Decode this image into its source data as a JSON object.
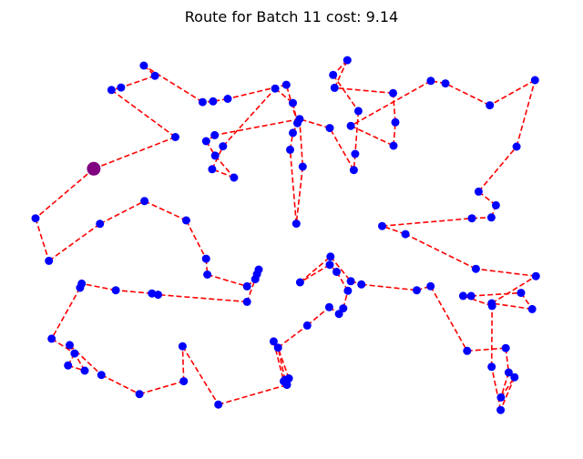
{
  "chart_data": {
    "type": "scatter",
    "title": "Route for Batch 11 cost: 9.14",
    "xlabel": "",
    "ylabel": "",
    "grid": false,
    "axes_visible": false,
    "depot_color": "#800080",
    "node_color": "#0000ff",
    "route_color": "#ff0000",
    "route_style": "dashed",
    "depot": {
      "x": 0.1149,
      "y": 0.6858
    },
    "route": [
      [
        0.1149,
        0.6858
      ],
      [
        0.0017,
        0.5566
      ],
      [
        0.0277,
        0.4456
      ],
      [
        0.1269,
        0.5421
      ],
      [
        0.2135,
        0.6015
      ],
      [
        0.2946,
        0.551
      ],
      [
        0.3331,
        0.451
      ],
      [
        0.3355,
        0.4097
      ],
      [
        0.4128,
        0.3792
      ],
      [
        0.4287,
        0.3976
      ],
      [
        0.4354,
        0.4229
      ],
      [
        0.432,
        0.4109
      ],
      [
        0.4128,
        0.3388
      ],
      [
        0.2398,
        0.3573
      ],
      [
        0.2398,
        0.3573
      ],
      [
        0.2279,
        0.3606
      ],
      [
        0.1577,
        0.3688
      ],
      [
        0.0915,
        0.3862
      ],
      [
        0.0883,
        0.3754
      ],
      [
        0.0331,
        0.2426
      ],
      [
        0.0777,
        0.204
      ],
      [
        0.0649,
        0.1726
      ],
      [
        0.0973,
        0.1591
      ],
      [
        0.0682,
        0.2258
      ],
      [
        0.1297,
        0.1479
      ],
      [
        0.2038,
        0.098
      ],
      [
        0.2898,
        0.1315
      ],
      [
        0.2875,
        0.2227
      ],
      [
        0.357,
        0.0708
      ],
      [
        0.4903,
        0.1222
      ],
      [
        0.4865,
        0.1352
      ],
      [
        0.4729,
        0.2192
      ],
      [
        0.4644,
        0.2354
      ],
      [
        0.484,
        0.1313
      ],
      [
        0.4898,
        0.1248
      ],
      [
        0.494,
        0.1389
      ],
      [
        0.4729,
        0.2192
      ],
      [
        0.5297,
        0.277
      ],
      [
        0.5724,
        0.3246
      ],
      [
        0.5913,
        0.3071
      ],
      [
        0.5997,
        0.3217
      ],
      [
        0.6087,
        0.3675
      ],
      [
        0.5868,
        0.4168
      ],
      [
        0.5734,
        0.4354
      ],
      [
        0.5158,
        0.3896
      ],
      [
        0.5748,
        0.4565
      ],
      [
        0.6143,
        0.3923
      ],
      [
        0.6349,
        0.384
      ],
      [
        0.7424,
        0.3688
      ],
      [
        0.7694,
        0.3794
      ],
      [
        0.8403,
        0.2107
      ],
      [
        0.9154,
        0.218
      ],
      [
        0.9211,
        0.1544
      ],
      [
        0.906,
        0.0892
      ],
      [
        0.9324,
        0.142
      ],
      [
        0.9054,
        0.0565
      ],
      [
        0.888,
        0.1692
      ],
      [
        0.8889,
        0.3281
      ],
      [
        0.8325,
        0.3542
      ],
      [
        0.8482,
        0.354
      ],
      [
        0.9451,
        0.3619
      ],
      [
        0.9667,
        0.3198
      ],
      [
        0.8882,
        0.335
      ],
      [
        0.9739,
        0.4057
      ],
      [
        0.8573,
        0.4248
      ],
      [
        0.7206,
        0.5153
      ],
      [
        0.6753,
        0.5364
      ],
      [
        0.8495,
        0.5566
      ],
      [
        0.8874,
        0.5587
      ],
      [
        0.8963,
        0.5906
      ],
      [
        0.8627,
        0.6261
      ],
      [
        0.9365,
        0.7434
      ],
      [
        0.9723,
        0.9169
      ],
      [
        0.8845,
        0.8512
      ],
      [
        0.7983,
        0.9083
      ],
      [
        0.7697,
        0.9149
      ],
      [
        0.6144,
        0.7977
      ],
      [
        0.6973,
        0.7458
      ],
      [
        0.7008,
        0.8069
      ],
      [
        0.6964,
        0.883
      ],
      [
        0.5828,
        0.8969
      ],
      [
        0.6076,
        0.969
      ],
      [
        0.58,
        0.9305
      ],
      [
        0.629,
        0.8364
      ],
      [
        0.6228,
        0.7244
      ],
      [
        0.6202,
        0.6825
      ],
      [
        0.5734,
        0.7919
      ],
      [
        0.5149,
        0.8155
      ],
      [
        0.5208,
        0.6913
      ],
      [
        0.5085,
        0.5426
      ],
      [
        0.4965,
        0.7354
      ],
      [
        0.5018,
        0.7794
      ],
      [
        0.5149,
        0.8155
      ],
      [
        0.3499,
        0.7733
      ],
      [
        0.3333,
        0.7577
      ],
      [
        0.3508,
        0.7199
      ],
      [
        0.3874,
        0.6626
      ],
      [
        0.345,
        0.6845
      ],
      [
        0.366,
        0.7444
      ],
      [
        0.4674,
        0.8949
      ],
      [
        0.5018,
        0.8573
      ],
      [
        0.5107,
        0.8048
      ],
      [
        0.489,
        0.9048
      ],
      [
        0.3752,
        0.8681
      ],
      [
        0.3467,
        0.8616
      ],
      [
        0.3264,
        0.8597
      ],
      [
        0.2123,
        0.9548
      ],
      [
        0.2338,
        0.9282
      ],
      [
        0.168,
        0.8977
      ],
      [
        0.1494,
        0.8911
      ],
      [
        0.2734,
        0.7685
      ],
      [
        0.1149,
        0.6858
      ]
    ]
  }
}
